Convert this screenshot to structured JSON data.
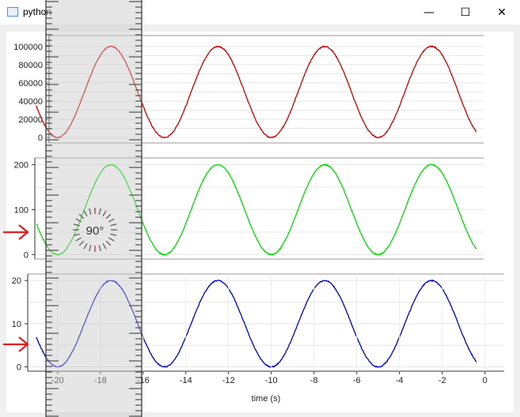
{
  "window": {
    "title": "python",
    "minimize_icon": "minimize-icon",
    "maximize_icon": "maximize-icon",
    "close_icon": "close-icon"
  },
  "overlay": {
    "rotation_readout": "90°",
    "arrow_color": "#e02020"
  },
  "chart_data": [
    {
      "type": "line",
      "series": [
        {
          "color": "#cc0000",
          "period": 5,
          "min": 0,
          "max": 100000,
          "x_range": [
            -21.0,
            -0.4
          ]
        }
      ],
      "yticks": [
        0,
        20000,
        40000,
        60000,
        80000,
        100000
      ],
      "ylim": [
        -6000,
        112000
      ],
      "grid": true
    },
    {
      "type": "line",
      "series": [
        {
          "color": "#00dd00",
          "period": 5,
          "min": 0,
          "max": 200,
          "x_range": [
            -21.0,
            -0.4
          ]
        }
      ],
      "yticks": [
        0,
        100,
        200
      ],
      "ylim": [
        -10,
        215
      ],
      "grid": true
    },
    {
      "type": "line",
      "series": [
        {
          "color": "#0000cc",
          "period": 5,
          "min": 0,
          "max": 20,
          "x_range": [
            -21.0,
            -0.4
          ]
        }
      ],
      "yticks": [
        0,
        10,
        20
      ],
      "ylim": [
        -1,
        21.5
      ],
      "grid": true,
      "xticks": [
        -20,
        -18,
        -16,
        -14,
        -12,
        -10,
        -8,
        -6,
        -4,
        -2,
        0
      ],
      "xlabel": "time (s)",
      "xlim": [
        -21.4,
        0.9
      ]
    }
  ]
}
